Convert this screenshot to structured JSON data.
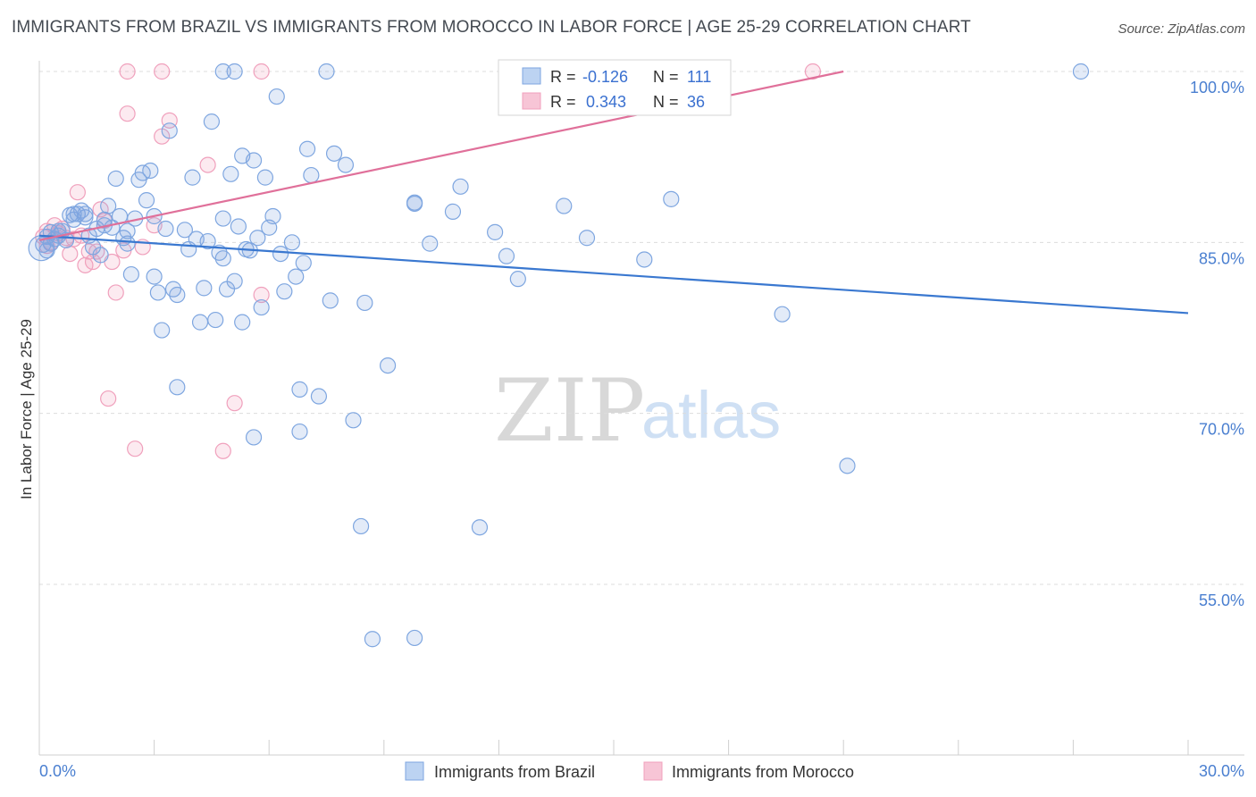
{
  "title": "IMMIGRANTS FROM BRAZIL VS IMMIGRANTS FROM MOROCCO IN LABOR FORCE | AGE 25-29 CORRELATION CHART",
  "source": "Source: ZipAtlas.com",
  "watermark": {
    "zip": "ZIP",
    "atlas": "atlas"
  },
  "stats": {
    "r_label": "R =",
    "n_label": "N =",
    "brazil": {
      "r": "-0.126",
      "n": "111"
    },
    "morocco": {
      "r": "0.343",
      "n": "36"
    }
  },
  "chart_data": {
    "type": "scatter",
    "ylabel": "In Labor Force | Age 25-29",
    "xlim": [
      0,
      30
    ],
    "ylim": [
      40,
      101.5
    ],
    "x_tick_labels": [
      "0.0%",
      "30.0%"
    ],
    "y_ticks": [
      {
        "value": 100,
        "label": "100.0%"
      },
      {
        "value": 85,
        "label": "85.0%"
      },
      {
        "value": 70,
        "label": "70.0%"
      },
      {
        "value": 55,
        "label": "55.0%"
      }
    ],
    "series": [
      {
        "name": "Immigrants from Brazil",
        "color": "#7ea6e0",
        "line_color": "#3a78d0",
        "trend": {
          "x0": 0,
          "y0": 85.6,
          "x1": 30,
          "y1": 78.8
        },
        "points": [
          [
            0.1,
            84.8
          ],
          [
            0.2,
            85.5
          ],
          [
            0.3,
            85.9
          ],
          [
            0.3,
            84.9
          ],
          [
            0.4,
            85.3
          ],
          [
            0.5,
            85.6
          ],
          [
            0.6,
            86.0
          ],
          [
            0.7,
            85.2
          ],
          [
            0.8,
            87.4
          ],
          [
            0.9,
            87.0
          ],
          [
            1.0,
            87.5
          ],
          [
            1.1,
            87.8
          ],
          [
            1.2,
            87.2
          ],
          [
            1.3,
            85.6
          ],
          [
            1.4,
            84.6
          ],
          [
            1.5,
            86.2
          ],
          [
            1.6,
            83.9
          ],
          [
            1.7,
            86.5
          ],
          [
            1.8,
            88.2
          ],
          [
            1.9,
            86.3
          ],
          [
            2.0,
            90.6
          ],
          [
            2.1,
            87.3
          ],
          [
            2.2,
            85.4
          ],
          [
            2.3,
            84.9
          ],
          [
            2.4,
            82.2
          ],
          [
            2.5,
            87.1
          ],
          [
            2.6,
            90.5
          ],
          [
            2.7,
            91.1
          ],
          [
            2.8,
            88.7
          ],
          [
            2.9,
            91.3
          ],
          [
            3.0,
            82.0
          ],
          [
            3.1,
            80.6
          ],
          [
            3.2,
            77.3
          ],
          [
            3.3,
            86.2
          ],
          [
            3.4,
            94.8
          ],
          [
            3.5,
            80.9
          ],
          [
            3.6,
            80.4
          ],
          [
            3.8,
            86.1
          ],
          [
            3.9,
            84.4
          ],
          [
            4.0,
            90.7
          ],
          [
            4.1,
            85.3
          ],
          [
            4.2,
            78.0
          ],
          [
            4.3,
            81.0
          ],
          [
            4.4,
            85.1
          ],
          [
            4.5,
            95.6
          ],
          [
            4.6,
            78.2
          ],
          [
            4.7,
            84.1
          ],
          [
            4.8,
            83.6
          ],
          [
            4.9,
            80.9
          ],
          [
            5.0,
            91.0
          ],
          [
            5.1,
            81.6
          ],
          [
            5.2,
            86.4
          ],
          [
            5.3,
            92.6
          ],
          [
            5.4,
            84.4
          ],
          [
            5.5,
            84.3
          ],
          [
            5.6,
            92.2
          ],
          [
            5.7,
            85.4
          ],
          [
            5.8,
            79.3
          ],
          [
            5.9,
            90.7
          ],
          [
            6.0,
            86.3
          ],
          [
            6.1,
            87.3
          ],
          [
            6.3,
            84.0
          ],
          [
            6.4,
            80.7
          ],
          [
            6.6,
            85.0
          ],
          [
            6.7,
            82.0
          ],
          [
            6.8,
            72.1
          ],
          [
            6.9,
            83.2
          ],
          [
            7.0,
            93.2
          ],
          [
            7.1,
            90.9
          ],
          [
            7.3,
            71.5
          ],
          [
            7.6,
            79.9
          ],
          [
            7.7,
            92.8
          ],
          [
            8.0,
            91.8
          ],
          [
            8.2,
            69.4
          ],
          [
            8.4,
            60.1
          ],
          [
            8.5,
            79.7
          ],
          [
            8.7,
            50.2
          ],
          [
            9.1,
            74.2
          ],
          [
            9.8,
            50.3
          ],
          [
            9.8,
            88.5
          ],
          [
            9.8,
            88.4
          ],
          [
            10.2,
            84.9
          ],
          [
            10.8,
            87.7
          ],
          [
            11.0,
            89.9
          ],
          [
            11.5,
            60.0
          ],
          [
            11.9,
            85.9
          ],
          [
            12.2,
            83.8
          ],
          [
            12.5,
            81.8
          ],
          [
            13.7,
            88.2
          ],
          [
            14.3,
            85.4
          ],
          [
            15.8,
            83.5
          ],
          [
            16.5,
            88.8
          ],
          [
            19.4,
            78.7
          ],
          [
            21.1,
            65.4
          ],
          [
            27.2,
            100.0
          ],
          [
            4.8,
            100.0
          ],
          [
            5.1,
            100.0
          ],
          [
            7.5,
            100.0
          ],
          [
            6.2,
            97.8
          ],
          [
            1.2,
            87.5
          ],
          [
            3.0,
            87.3
          ],
          [
            0.9,
            87.5
          ],
          [
            1.7,
            87.0
          ],
          [
            5.3,
            78.0
          ],
          [
            5.6,
            67.9
          ],
          [
            3.6,
            72.3
          ],
          [
            6.8,
            68.4
          ],
          [
            2.3,
            86.0
          ],
          [
            4.8,
            87.1
          ],
          [
            0.5,
            86.0
          ],
          [
            0.2,
            84.3
          ]
        ]
      },
      {
        "name": "Immigrants from Morocco",
        "color": "#f0a0bc",
        "line_color": "#e0709a",
        "trend": {
          "x0": 0,
          "y0": 85.2,
          "x1": 21.0,
          "y1": 100.0
        },
        "points": [
          [
            0.1,
            85.5
          ],
          [
            0.2,
            86.0
          ],
          [
            0.3,
            85.0
          ],
          [
            0.4,
            86.5
          ],
          [
            0.5,
            85.8
          ],
          [
            0.6,
            86.2
          ],
          [
            0.7,
            85.4
          ],
          [
            0.8,
            84.0
          ],
          [
            1.0,
            89.4
          ],
          [
            1.1,
            85.6
          ],
          [
            1.3,
            84.2
          ],
          [
            1.4,
            83.3
          ],
          [
            1.6,
            87.9
          ],
          [
            1.7,
            86.9
          ],
          [
            1.8,
            71.3
          ],
          [
            2.0,
            80.6
          ],
          [
            2.2,
            84.3
          ],
          [
            2.3,
            96.3
          ],
          [
            2.5,
            66.9
          ],
          [
            2.7,
            84.6
          ],
          [
            3.0,
            86.5
          ],
          [
            3.2,
            94.3
          ],
          [
            3.4,
            95.7
          ],
          [
            4.4,
            91.8
          ],
          [
            4.8,
            66.7
          ],
          [
            5.1,
            70.9
          ],
          [
            5.8,
            80.4
          ],
          [
            2.3,
            100.0
          ],
          [
            3.2,
            100.0
          ],
          [
            5.8,
            100.0
          ],
          [
            20.2,
            100.0
          ],
          [
            1.9,
            83.3
          ],
          [
            1.5,
            84.2
          ],
          [
            0.9,
            85.3
          ],
          [
            1.2,
            83.0
          ],
          [
            0.2,
            84.7
          ]
        ]
      }
    ]
  },
  "legend": {
    "brazil": "Immigrants from Brazil",
    "morocco": "Immigrants from Morocco"
  }
}
